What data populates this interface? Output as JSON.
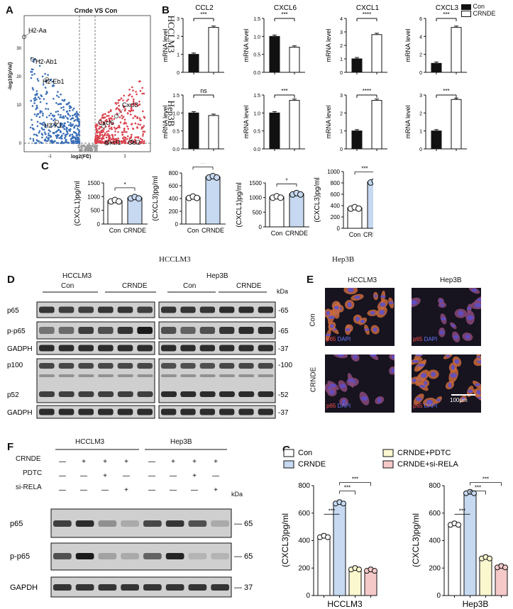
{
  "panels": {
    "A": "A",
    "B": "B",
    "C": "C",
    "D": "D",
    "E": "E",
    "F": "F",
    "G": "G"
  },
  "volcano": {
    "title": "Crnde VS Con",
    "xlabel": "log2(FC)",
    "ylabel": "-log10(pVal)",
    "x_ticks": [
      "-1",
      "0",
      "1"
    ],
    "y_ticks": [
      "0",
      "10",
      "20",
      "30"
    ],
    "labels": [
      "H2-Aa",
      "H2-Ab1",
      "H2-Eb1",
      "H2-K1",
      "Cxcl3",
      "Cxcl6",
      "Cxcl1",
      "Ccl2"
    ],
    "colors": {
      "down": "#3a6fb7",
      "up": "#d9424e",
      "ns": "#9a9a9a"
    }
  },
  "panel_b": {
    "genes": [
      "CCL2",
      "CXCL6",
      "CXCL1",
      "CXCL3"
    ],
    "row_labels": [
      "HCCLM3",
      "Hep3B"
    ],
    "ylabel": "mRNA level",
    "legend": [
      "Con",
      "CRNDE"
    ],
    "chart_data": [
      {
        "type": "bar",
        "cell": "HCCLM3",
        "gene": "CCL2",
        "categories": [
          "Con",
          "CRNDE"
        ],
        "values": [
          1.0,
          2.5
        ],
        "ylim": [
          0,
          3
        ],
        "y_ticks": [
          "0",
          "1",
          "2",
          "3"
        ],
        "sig": "***"
      },
      {
        "type": "bar",
        "cell": "HCCLM3",
        "gene": "CXCL6",
        "categories": [
          "Con",
          "CRNDE"
        ],
        "values": [
          1.0,
          0.7
        ],
        "ylim": [
          0,
          1.5
        ],
        "y_ticks": [
          "0.0",
          "0.5",
          "1.0",
          "1.5"
        ],
        "sig": "***"
      },
      {
        "type": "bar",
        "cell": "HCCLM3",
        "gene": "CXCL1",
        "categories": [
          "Con",
          "CRNDE"
        ],
        "values": [
          1.0,
          2.8
        ],
        "ylim": [
          0,
          4
        ],
        "y_ticks": [
          "0",
          "1",
          "2",
          "3",
          "4"
        ],
        "sig": "****"
      },
      {
        "type": "bar",
        "cell": "HCCLM3",
        "gene": "CXCL3",
        "categories": [
          "Con",
          "CRNDE"
        ],
        "values": [
          1.0,
          5.0
        ],
        "ylim": [
          0,
          6
        ],
        "y_ticks": [
          "0",
          "2",
          "4",
          "6"
        ],
        "sig": "***"
      },
      {
        "type": "bar",
        "cell": "Hep3B",
        "gene": "CCL2",
        "categories": [
          "Con",
          "CRNDE"
        ],
        "values": [
          1.0,
          0.93
        ],
        "ylim": [
          0,
          1.5
        ],
        "y_ticks": [
          "0.0",
          "0.5",
          "1.0",
          "1.5"
        ],
        "sig": "ns"
      },
      {
        "type": "bar",
        "cell": "Hep3B",
        "gene": "CXCL6",
        "categories": [
          "Con",
          "CRNDE"
        ],
        "values": [
          1.0,
          1.35
        ],
        "ylim": [
          0,
          1.5
        ],
        "y_ticks": [
          "0.0",
          "0.5",
          "1.0",
          "1.5"
        ],
        "sig": "***"
      },
      {
        "type": "bar",
        "cell": "Hep3B",
        "gene": "CXCL1",
        "categories": [
          "Con",
          "CRNDE"
        ],
        "values": [
          1.0,
          2.7
        ],
        "ylim": [
          0,
          3
        ],
        "y_ticks": [
          "0",
          "1",
          "2",
          "3"
        ],
        "sig": "****"
      },
      {
        "type": "bar",
        "cell": "Hep3B",
        "gene": "CXCL3",
        "categories": [
          "Con",
          "CRNDE"
        ],
        "values": [
          1.0,
          2.75
        ],
        "ylim": [
          0,
          3
        ],
        "y_ticks": [
          "0",
          "1",
          "2",
          "3"
        ],
        "sig": "***"
      }
    ]
  },
  "panel_c": {
    "cells": [
      "HCCLM3",
      "Hep3B"
    ],
    "chart_data": [
      {
        "type": "bar",
        "ylabel": "(CXCL1)pg/ml",
        "categories": [
          "Con",
          "CRNDE"
        ],
        "values": [
          850,
          960
        ],
        "ylim": [
          0,
          1500
        ],
        "y_ticks": [
          "0",
          "500",
          "1000",
          "1500"
        ],
        "sig": "*"
      },
      {
        "type": "bar",
        "ylabel": "(CXCL3)pg/ml",
        "categories": [
          "Con",
          "CRNDE"
        ],
        "values": [
          420,
          740
        ],
        "ylim": [
          0,
          800
        ],
        "y_ticks": [
          "0",
          "200",
          "400",
          "600",
          "800"
        ],
        "sig": "***"
      },
      {
        "type": "bar",
        "ylabel": "(CXCL1)pg/ml",
        "categories": [
          "Con",
          "CRNDE"
        ],
        "values": [
          1020,
          1130
        ],
        "ylim": [
          0,
          1500
        ],
        "y_ticks": [
          "0",
          "500",
          "1000",
          "1500"
        ],
        "sig": "*"
      },
      {
        "type": "bar",
        "ylabel": "(CXCL3)pg/ml",
        "categories": [
          "Con",
          "CRNDE"
        ],
        "values": [
          360,
          820
        ],
        "ylim": [
          0,
          1000
        ],
        "y_ticks": [
          "0",
          "200",
          "400",
          "600",
          "800",
          "1000"
        ],
        "sig": "***"
      }
    ]
  },
  "panel_d": {
    "groups": [
      "HCCLM3",
      "Hep3B"
    ],
    "subgroups": [
      "Con",
      "CRNDE",
      "Con",
      "CRNDE"
    ],
    "unit": "kDa",
    "rows": [
      {
        "label": "p65",
        "kda": "65"
      },
      {
        "label": "p-p65",
        "kda": "65"
      },
      {
        "label": "GADPH",
        "kda": "37"
      },
      {
        "label": "p100",
        "kda": "100"
      },
      {
        "label": "p52",
        "kda": "52"
      },
      {
        "label": "GADPH",
        "kda": "37"
      }
    ]
  },
  "panel_e": {
    "cols": [
      "HCCLM3",
      "Hep3B"
    ],
    "rows": [
      "Con",
      "CRNDE"
    ],
    "stain": "p65",
    "dapi": "DAPI",
    "scale": "100μm"
  },
  "panel_f": {
    "groups": [
      "HCCLM3",
      "Hep3B"
    ],
    "conditions": [
      {
        "label": "CRNDE",
        "marks": [
          "—",
          "+",
          "+",
          "+",
          "—",
          "+",
          "+",
          "+"
        ]
      },
      {
        "label": "PDTC",
        "marks": [
          "—",
          "—",
          "+",
          "—",
          "—",
          "—",
          "+",
          "—"
        ]
      },
      {
        "label": "si-RELA",
        "marks": [
          "—",
          "—",
          "—",
          "+",
          "—",
          "—",
          "—",
          "+"
        ]
      }
    ],
    "unit": "kDa",
    "rows": [
      {
        "label": "p65",
        "kda": "65"
      },
      {
        "label": "p-p65",
        "kda": "65"
      },
      {
        "label": "GAPDH",
        "kda": "37"
      }
    ]
  },
  "panel_g": {
    "legend": [
      "Con",
      "CRNDE",
      "CRNDE+PDTC",
      "CRNDE+si-RELA"
    ],
    "colors": [
      "#ffffff",
      "#c6d9f1",
      "#fbf8d0",
      "#f6c9c9"
    ],
    "chart_data": [
      {
        "type": "bar",
        "xlabel": "HCCLM3",
        "ylabel": "(CXCL3)pg/ml",
        "categories": [
          "Con",
          "CRNDE",
          "CRNDE+PDTC",
          "CRNDE+si-RELA"
        ],
        "values": [
          430,
          675,
          195,
          185
        ],
        "ylim": [
          0,
          800
        ],
        "y_ticks": [
          "0",
          "200",
          "400",
          "600",
          "800"
        ],
        "sig": [
          "***",
          "***",
          "***"
        ]
      },
      {
        "type": "bar",
        "xlabel": "Hep3B",
        "ylabel": "(CXCL3)pg/ml",
        "categories": [
          "Con",
          "CRNDE",
          "CRNDE+PDTC",
          "CRNDE+si-RELA"
        ],
        "values": [
          520,
          750,
          275,
          210
        ],
        "ylim": [
          0,
          800
        ],
        "y_ticks": [
          "0",
          "200",
          "400",
          "600",
          "800"
        ],
        "sig": [
          "***",
          "***",
          "***"
        ]
      }
    ]
  }
}
